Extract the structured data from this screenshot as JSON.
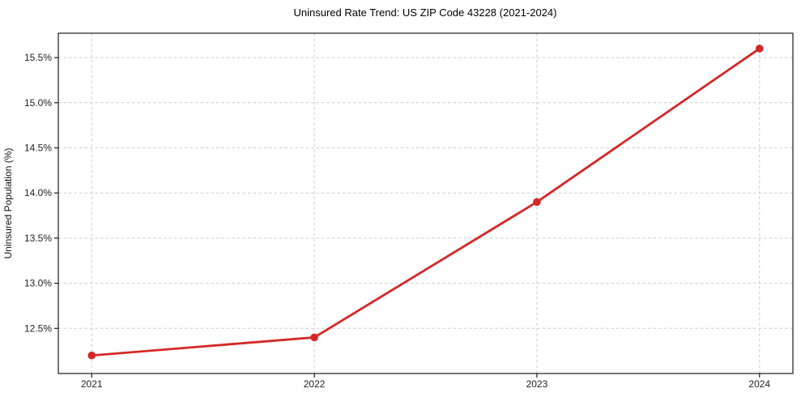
{
  "chart_data": {
    "type": "line",
    "title": "Uninsured Rate Trend: US ZIP Code 43228 (2021-2024)",
    "xlabel": "",
    "ylabel": "Uninsured Population (%)",
    "x": [
      2021,
      2022,
      2023,
      2024
    ],
    "series": [
      {
        "values": [
          12.2,
          12.4,
          13.9,
          15.6
        ]
      }
    ],
    "xlim": [
      2020.85,
      2024.15
    ],
    "ylim": [
      12.0,
      15.77
    ],
    "xticks": [
      2021,
      2022,
      2023,
      2024
    ],
    "xtick_labels": [
      "2021",
      "2022",
      "2023",
      "2024"
    ],
    "yticks": [
      12.5,
      13.0,
      13.5,
      14.0,
      14.5,
      15.0,
      15.5
    ],
    "ytick_labels": [
      "12.5%",
      "13.0%",
      "13.5%",
      "14.0%",
      "14.5%",
      "15.0%",
      "15.5%"
    ],
    "grid": true,
    "grid_style": "dashed",
    "legend": "none",
    "line_color": "#d62728",
    "marker_color": "#d62728",
    "marker_shape": "circle",
    "grid_color": "#cccccc",
    "spine_color": "#1a1a1a",
    "background_color": "#ffffff"
  }
}
